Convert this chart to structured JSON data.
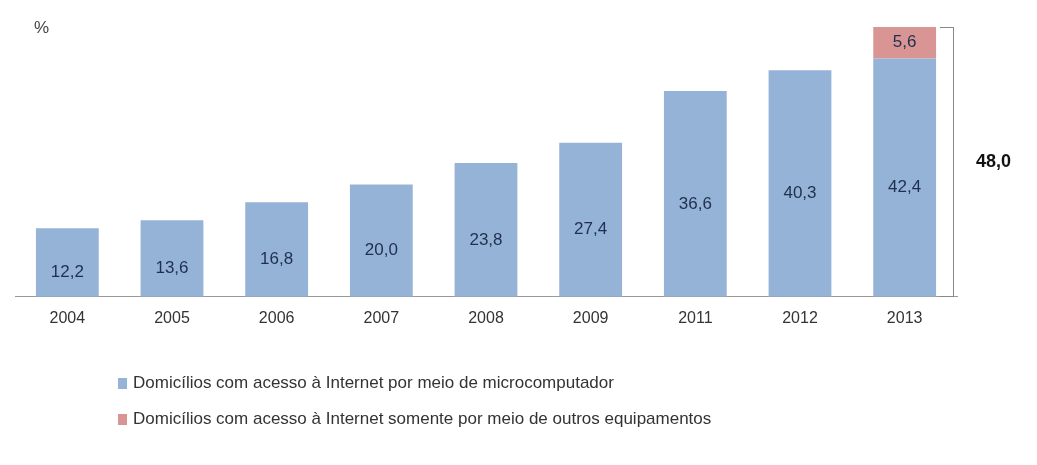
{
  "chart_data": {
    "type": "bar",
    "ylabel": "%",
    "stacked": true,
    "legend": "bottom",
    "grid": false,
    "categories": [
      "2004",
      "2005",
      "2006",
      "2007",
      "2008",
      "2009",
      "2011",
      "2012",
      "2013"
    ],
    "series": [
      {
        "name": "Domicílios com acesso à Internet por meio de microcomputador",
        "color": "#95b3d7",
        "values": [
          12.2,
          13.6,
          16.8,
          20.0,
          23.8,
          27.4,
          36.6,
          40.3,
          42.4
        ],
        "value_labels": [
          "12,2",
          "13,6",
          "16,8",
          "20,0",
          "23,8",
          "27,4",
          "36,6",
          "40,3",
          "42,4"
        ]
      },
      {
        "name": "Domicílios com acesso à Internet somente por meio de outros equipamentos",
        "color": "#d99594",
        "values": [
          null,
          null,
          null,
          null,
          null,
          null,
          null,
          null,
          5.6
        ],
        "value_labels": [
          null,
          null,
          null,
          null,
          null,
          null,
          null,
          null,
          "5,6"
        ]
      }
    ],
    "totals": [
      null,
      null,
      null,
      null,
      null,
      null,
      null,
      null,
      "48,0"
    ]
  }
}
